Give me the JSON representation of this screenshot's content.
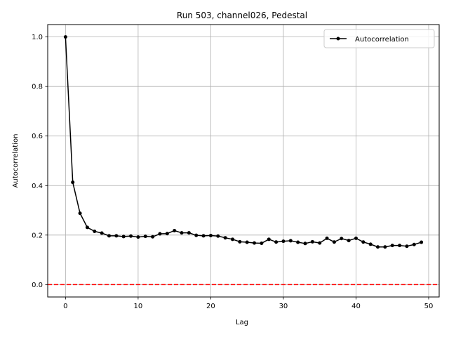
{
  "chart_data": {
    "type": "line",
    "title": "Run 503, channel026, Pedestal",
    "xlabel": "Lag",
    "ylabel": "Autocorrelation",
    "xlim": [
      -2.45,
      51.45
    ],
    "ylim": [
      -0.05,
      1.05
    ],
    "xticks": [
      0,
      10,
      20,
      30,
      40,
      50
    ],
    "yticks": [
      0.0,
      0.2,
      0.4,
      0.6,
      0.8,
      1.0
    ],
    "xtick_labels": [
      "0",
      "10",
      "20",
      "30",
      "40",
      "50"
    ],
    "ytick_labels": [
      "0.0",
      "0.2",
      "0.4",
      "0.6",
      "0.8",
      "1.0"
    ],
    "grid": true,
    "legend_position": "top-right",
    "reference_line": {
      "y": 0.0,
      "color": "#ff0000",
      "style": "dashed"
    },
    "series": [
      {
        "name": "Autocorrelation",
        "color": "#000000",
        "marker": "circle",
        "x": [
          0,
          1,
          2,
          3,
          4,
          5,
          6,
          7,
          8,
          9,
          10,
          11,
          12,
          13,
          14,
          15,
          16,
          17,
          18,
          19,
          20,
          21,
          22,
          23,
          24,
          25,
          26,
          27,
          28,
          29,
          30,
          31,
          32,
          33,
          34,
          35,
          36,
          37,
          38,
          39,
          40,
          41,
          42,
          43,
          44,
          45,
          46,
          47,
          48,
          49
        ],
        "y": [
          1.0,
          0.413,
          0.288,
          0.231,
          0.215,
          0.208,
          0.197,
          0.197,
          0.194,
          0.196,
          0.192,
          0.195,
          0.193,
          0.205,
          0.206,
          0.218,
          0.209,
          0.209,
          0.199,
          0.197,
          0.198,
          0.196,
          0.189,
          0.183,
          0.173,
          0.171,
          0.168,
          0.167,
          0.183,
          0.172,
          0.175,
          0.177,
          0.171,
          0.166,
          0.173,
          0.168,
          0.187,
          0.172,
          0.186,
          0.178,
          0.187,
          0.172,
          0.163,
          0.152,
          0.152,
          0.158,
          0.158,
          0.155,
          0.162,
          0.171
        ]
      }
    ]
  }
}
